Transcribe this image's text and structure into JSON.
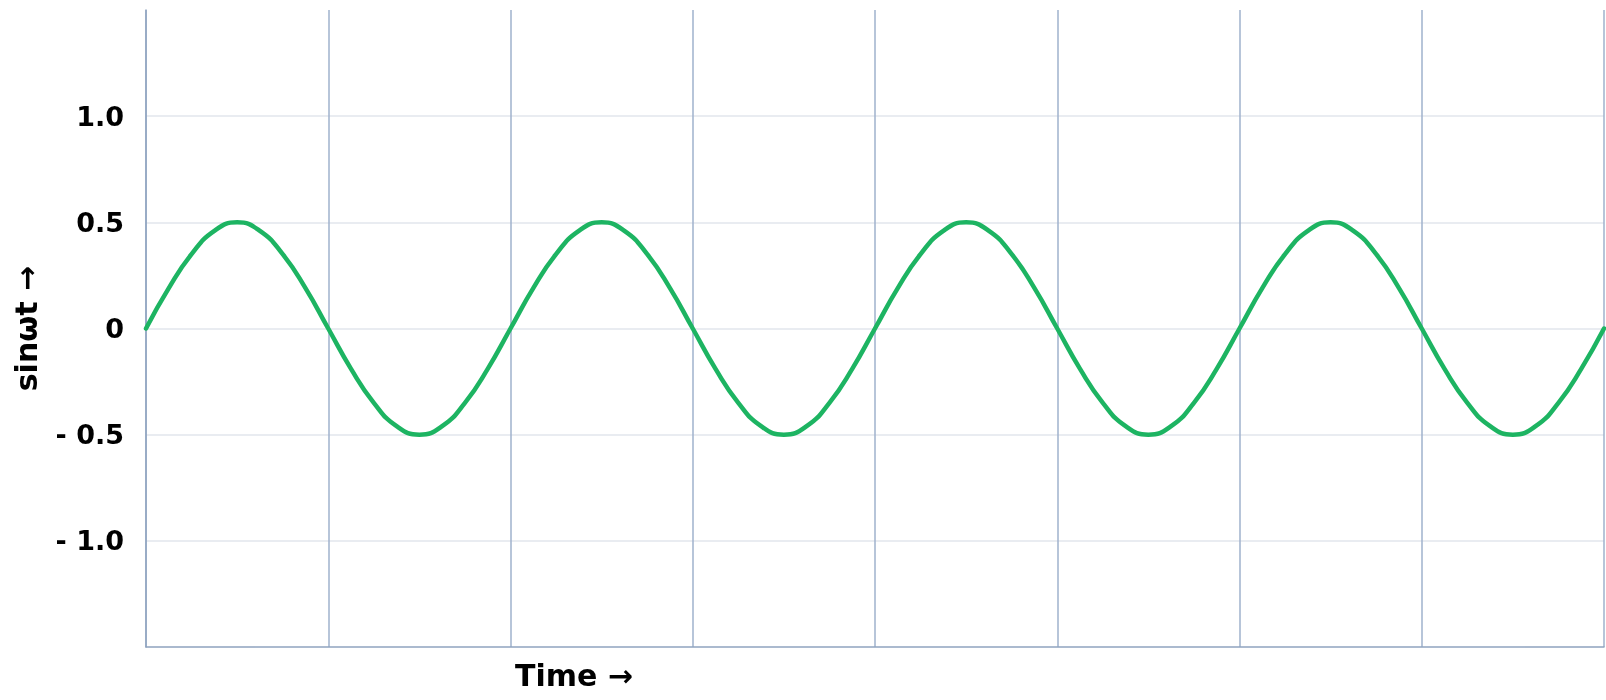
{
  "chart_data": {
    "type": "line",
    "xlabel": "Time →",
    "ylabel": "sinωt →",
    "categories": [
      null,
      null,
      null,
      null,
      null,
      null,
      null,
      null,
      null,
      null,
      null,
      null,
      null,
      null,
      null,
      null,
      null,
      null,
      null,
      null,
      null,
      null,
      null,
      null,
      null,
      null,
      null,
      null,
      null,
      null,
      null,
      null,
      null,
      null,
      null,
      null,
      null,
      null,
      null,
      null,
      null,
      null,
      null,
      null,
      null,
      null,
      null,
      null,
      null,
      null,
      null,
      null,
      null,
      null,
      null,
      null,
      null,
      null,
      null,
      null,
      null,
      null,
      null,
      null,
      null
    ],
    "series": [
      {
        "color": "#1db462",
        "values": [
          0,
          0.19,
          0.35,
          0.46,
          0.5,
          0.46,
          0.35,
          0.19,
          0,
          -0.19,
          -0.35,
          -0.46,
          -0.5,
          -0.46,
          -0.35,
          -0.19,
          0,
          0.19,
          0.35,
          0.46,
          0.5,
          0.46,
          0.35,
          0.19,
          0,
          -0.19,
          -0.35,
          -0.46,
          -0.5,
          -0.46,
          -0.35,
          -0.19,
          0,
          0.19,
          0.35,
          0.46,
          0.5,
          0.46,
          0.35,
          0.19,
          0,
          -0.19,
          -0.35,
          -0.46,
          -0.5,
          -0.46,
          -0.35,
          -0.19,
          0,
          0.19,
          0.35,
          0.46,
          0.5,
          0.46,
          0.35,
          0.19,
          0,
          -0.19,
          -0.35,
          -0.46,
          -0.5,
          -0.46,
          -0.35,
          -0.19,
          0
        ]
      }
    ],
    "ylim": [
      -1.5,
      1.5
    ],
    "yticks": [
      {
        "value": 1,
        "label": "1.0"
      },
      {
        "value": 0.5,
        "label": "0.5"
      },
      0,
      {
        "value": -0.5,
        "label": "- 0.5"
      },
      {
        "value": -1,
        "label": "- 1.0"
      }
    ],
    "tick_labels": "y",
    "grid": true,
    "marker": "none",
    "line_style": "solid"
  }
}
